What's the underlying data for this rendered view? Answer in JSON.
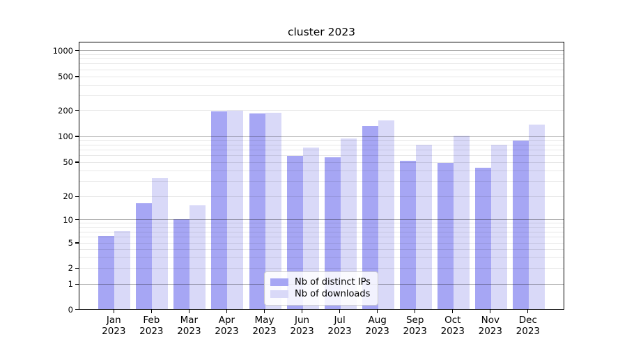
{
  "title": "cluster 2023",
  "legend": {
    "items": [
      {
        "label": "Nb of distinct IPs",
        "color": "#a6a6f4"
      },
      {
        "label": "Nb of downloads",
        "color": "#d9d9f8"
      }
    ],
    "position": "lower center"
  },
  "chart_data": {
    "type": "bar",
    "title": "cluster 2023",
    "categories": [
      {
        "month": "Jan",
        "year": "2023"
      },
      {
        "month": "Feb",
        "year": "2023"
      },
      {
        "month": "Mar",
        "year": "2023"
      },
      {
        "month": "Apr",
        "year": "2023"
      },
      {
        "month": "May",
        "year": "2023"
      },
      {
        "month": "Jun",
        "year": "2023"
      },
      {
        "month": "Jul",
        "year": "2023"
      },
      {
        "month": "Aug",
        "year": "2023"
      },
      {
        "month": "Sep",
        "year": "2023"
      },
      {
        "month": "Oct",
        "year": "2023"
      },
      {
        "month": "Nov",
        "year": "2023"
      },
      {
        "month": "Dec",
        "year": "2023"
      }
    ],
    "series": [
      {
        "name": "Nb of distinct IPs",
        "color": "#a6a6f4",
        "values": [
          6,
          16,
          10,
          190,
          180,
          58,
          56,
          130,
          51,
          48,
          42,
          87
        ]
      },
      {
        "name": "Nb of downloads",
        "color": "#d9d9f8",
        "values": [
          7,
          32,
          15,
          195,
          185,
          73,
          92,
          150,
          78,
          100,
          79,
          135
        ]
      }
    ],
    "xlabel": "",
    "ylabel": "",
    "yscale": "symlog",
    "ylim": [
      0,
      1250
    ],
    "y_ticks": [
      0,
      1,
      2,
      5,
      10,
      20,
      50,
      100,
      200,
      500,
      1000
    ],
    "grid": {
      "on": true,
      "major_values": [
        1,
        10,
        100,
        1000
      ],
      "minor_values": [
        2,
        3,
        4,
        5,
        6,
        7,
        8,
        9,
        20,
        30,
        40,
        50,
        60,
        70,
        80,
        90,
        200,
        300,
        400,
        500,
        600,
        700,
        800,
        900
      ]
    },
    "legend_position": "lower center"
  }
}
